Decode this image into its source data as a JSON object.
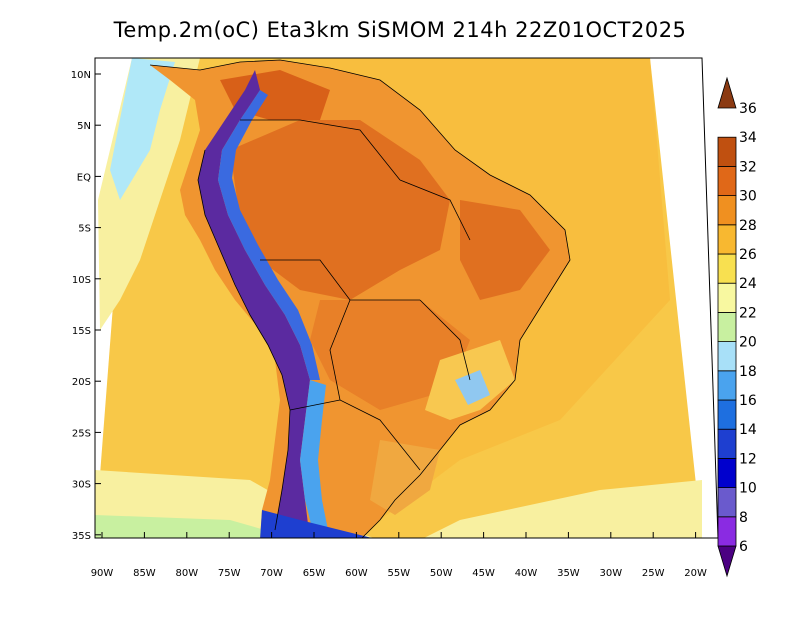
{
  "title": "Temp.2m(oC) Eta3km SiSMOM 214h 22Z01OCT2025",
  "lat_labels": [
    "10N",
    "5N",
    "EQ",
    "5S",
    "10S",
    "15S",
    "20S",
    "25S",
    "30S",
    "35S"
  ],
  "lon_labels": [
    "90W",
    "85W",
    "80W",
    "75W",
    "70W",
    "65W",
    "60W",
    "55W",
    "50W",
    "45W",
    "40W",
    "35W",
    "30W",
    "25W",
    "20W"
  ],
  "colorbar": {
    "labels": [
      "6",
      "8",
      "10",
      "12",
      "14",
      "16",
      "18",
      "20",
      "22",
      "24",
      "26",
      "28",
      "30",
      "32",
      "34",
      "36"
    ],
    "colors": [
      "#4b0082",
      "#8a2be2",
      "#6a5acd",
      "#0000cd",
      "#1e3fd0",
      "#1e6fe0",
      "#4aa3ee",
      "#a8e0f8",
      "#c8f0a0",
      "#f8f8a0",
      "#f8e050",
      "#f8b830",
      "#f09020",
      "#e06818",
      "#c05010",
      "#8b3a12"
    ]
  },
  "fields": {
    "ocean_color": "#f8c040",
    "land_color": "#f09020",
    "andes_color": "#5b2aa0"
  }
}
